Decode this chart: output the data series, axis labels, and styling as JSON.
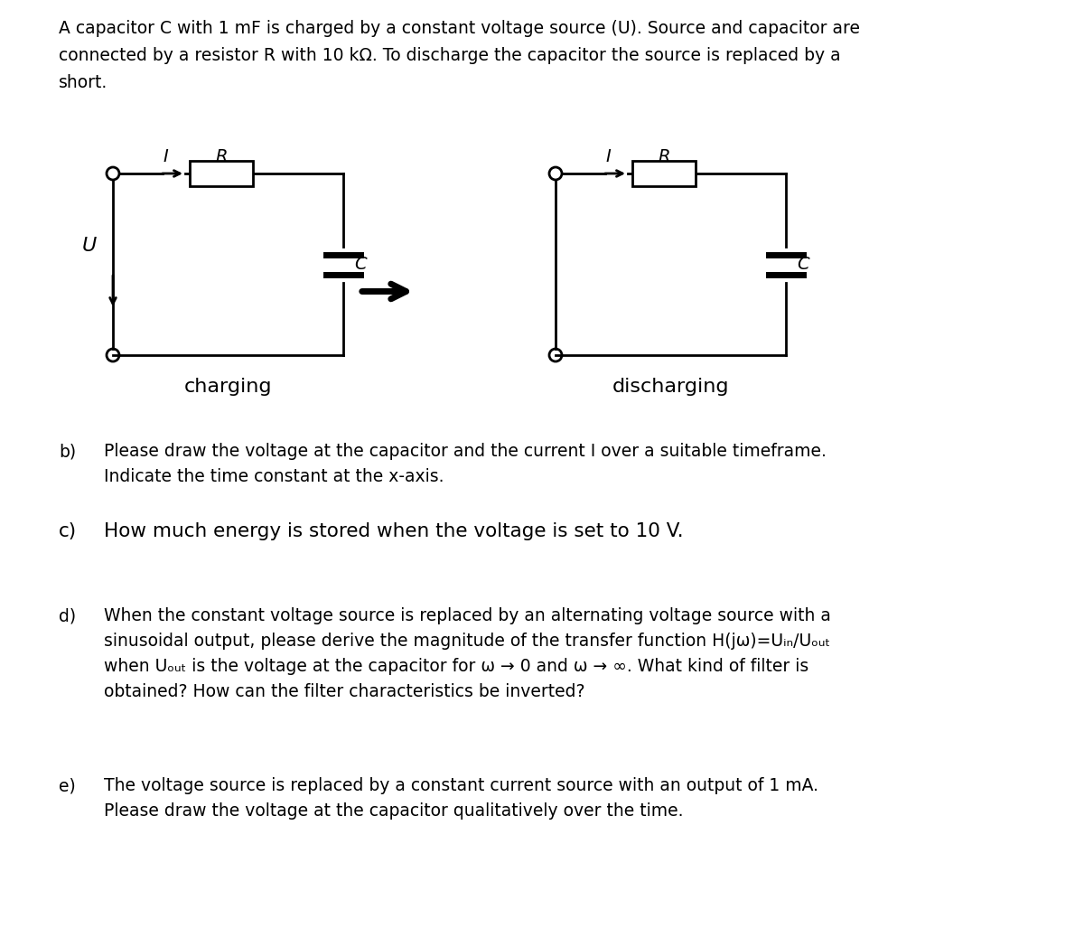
{
  "bg_color": "#ffffff",
  "font_size_title": 13.5,
  "font_size_body": 13.5,
  "font_size_circuit_label": 13,
  "font_size_charging_label": 16,
  "title_lines": [
    "A capacitor C with 1 mF is charged by a constant voltage source (U). Source and capacitor are",
    "connected by a resistor R with 10 kΩ. To discharge the capacitor the source is replaced by a",
    "short."
  ],
  "charging_label": "charging",
  "discharging_label": "discharging",
  "b_label": "b)",
  "b_line1": "Please draw the voltage at the capacitor and the current I over a suitable timeframe.",
  "b_line2": "Indicate the time constant at the x-axis.",
  "c_label": "c)",
  "c_text": "How much energy is stored when the voltage is set to 10 V.",
  "d_label": "d)",
  "d_line1": "When the constant voltage source is replaced by an alternating voltage source with a",
  "d_line2": "sinusoidal output, please derive the magnitude of the transfer function H(jω)=Uᵢₙ/Uₒᵤₜ",
  "d_line3": "when Uₒᵤₜ is the voltage at the capacitor for ω → 0 and ω → ∞. What kind of filter is",
  "d_line4": "obtained? How can the filter characteristics be inverted?",
  "e_label": "e)",
  "e_line1": "The voltage source is replaced by a constant current source with an output of 1 mA.",
  "e_line2": "Please draw the voltage at the capacitor qualitatively over the time."
}
